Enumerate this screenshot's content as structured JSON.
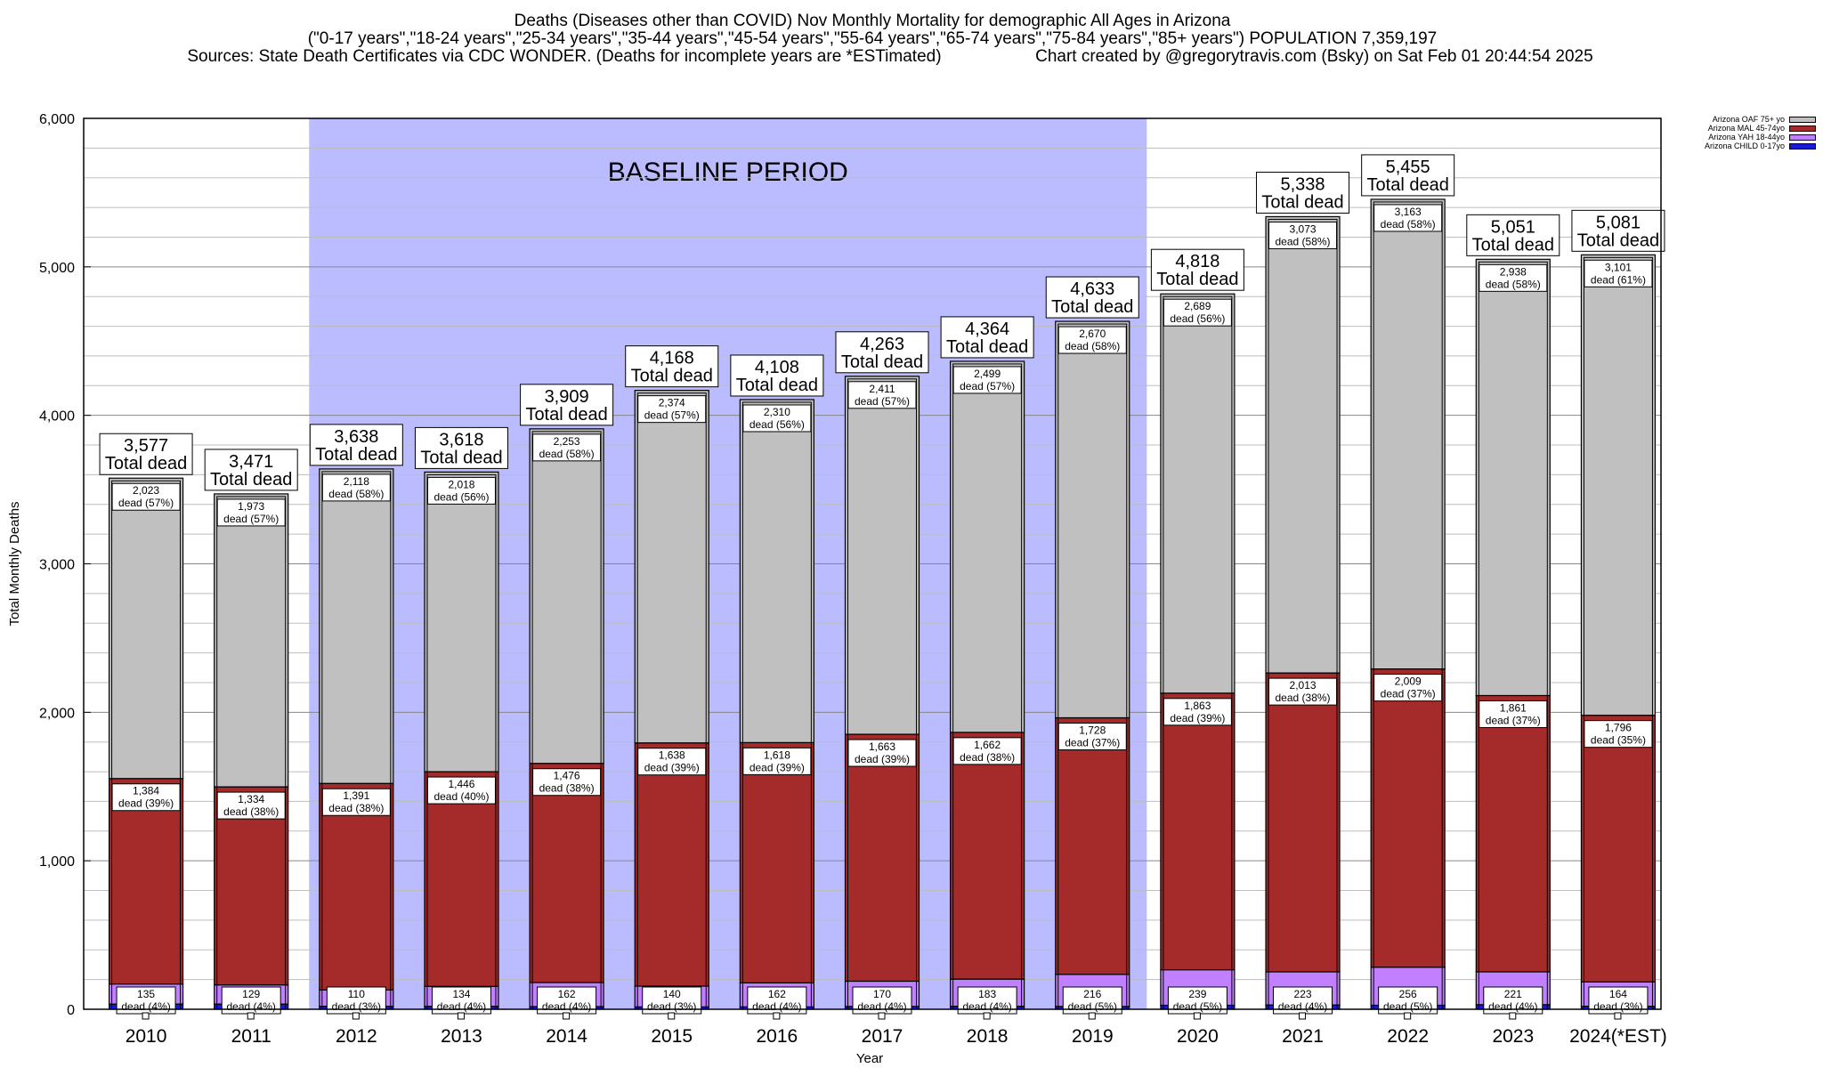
{
  "titles": {
    "line1": "Deaths (Diseases other than COVID) Nov Monthly Mortality for demographic All Ages in Arizona",
    "line2": "(\"0-17 years\",\"18-24 years\",\"25-34 years\",\"35-44 years\",\"45-54 years\",\"55-64 years\",\"65-74 years\",\"75-84 years\",\"85+ years\") POPULATION 7,359,197",
    "line3_left": "Sources: State Death Certificates via CDC WONDER. (Deaths for incomplete years are *ESTimated)",
    "line3_right": "Chart created by @gregorytravis.com (Bsky) on Sat Feb 01 20:44:54 2025"
  },
  "chart_data": {
    "type": "bar",
    "stacked": true,
    "xlabel": "Year",
    "ylabel": "Total Monthly Deaths",
    "ylim": [
      0,
      6000
    ],
    "y_ticks": [
      "0",
      "1,000",
      "2,000",
      "3,000",
      "4,000",
      "5,000",
      "6,000"
    ],
    "grid": true,
    "baseline_label": "BASELINE PERIOD",
    "baseline_range": [
      "2012",
      "2019"
    ],
    "total_label_suffix": "Total dead",
    "segment_label_word": "dead",
    "legend_position": "top-right",
    "categories": [
      "2010",
      "2011",
      "2012",
      "2013",
      "2014",
      "2015",
      "2016",
      "2017",
      "2018",
      "2019",
      "2020",
      "2021",
      "2022",
      "2023",
      "2024(*EST)"
    ],
    "totals": [
      "3,577",
      "3,471",
      "3,638",
      "3,618",
      "3,909",
      "4,168",
      "4,108",
      "4,263",
      "4,364",
      "4,633",
      "4,818",
      "5,338",
      "5,455",
      "5,051",
      "5,081"
    ],
    "series": [
      {
        "name": "Arizona CHILD 0-17yo",
        "color": "#1a1ad6",
        "values": [
          35,
          35,
          20,
          20,
          18,
          16,
          16,
          19,
          20,
          19,
          27,
          29,
          27,
          31,
          20
        ]
      },
      {
        "name": "Arizona YAH 18-44yo",
        "color": "#c080ff",
        "values": [
          135,
          129,
          110,
          134,
          162,
          140,
          162,
          170,
          183,
          216,
          239,
          223,
          256,
          221,
          164
        ],
        "labels": [
          "135",
          "129",
          "110",
          "134",
          "162",
          "140",
          "162",
          "170",
          "183",
          "216",
          "239",
          "223",
          "256",
          "221",
          "164"
        ],
        "pcts": [
          "(4%)",
          "(4%)",
          "(3%)",
          "(4%)",
          "(4%)",
          "(3%)",
          "(4%)",
          "(4%)",
          "(4%)",
          "(5%)",
          "(5%)",
          "(4%)",
          "(5%)",
          "(4%)",
          "(3%)"
        ]
      },
      {
        "name": "Arizona MAL 45-74yo",
        "color": "#a52a2a",
        "values": [
          1384,
          1334,
          1391,
          1446,
          1476,
          1638,
          1618,
          1663,
          1662,
          1728,
          1863,
          2013,
          2009,
          1861,
          1796
        ],
        "labels": [
          "1,384",
          "1,334",
          "1,391",
          "1,446",
          "1,476",
          "1,638",
          "1,618",
          "1,663",
          "1,662",
          "1,728",
          "1,863",
          "2,013",
          "2,009",
          "1,861",
          "1,796"
        ],
        "pcts": [
          "(39%)",
          "(38%)",
          "(38%)",
          "(40%)",
          "(38%)",
          "(39%)",
          "(39%)",
          "(39%)",
          "(38%)",
          "(37%)",
          "(39%)",
          "(38%)",
          "(37%)",
          "(37%)",
          "(35%)"
        ]
      },
      {
        "name": "Arizona OAF 75+ yo",
        "color": "#c0c0c0",
        "values": [
          2023,
          1973,
          2118,
          2018,
          2253,
          2374,
          2310,
          2411,
          2499,
          2670,
          2689,
          3073,
          3163,
          2938,
          3101
        ],
        "labels": [
          "2,023",
          "1,973",
          "2,118",
          "2,018",
          "2,253",
          "2,374",
          "2,310",
          "2,411",
          "2,499",
          "2,670",
          "2,689",
          "3,073",
          "3,163",
          "2,938",
          "3,101"
        ],
        "pcts": [
          "(57%)",
          "(57%)",
          "(58%)",
          "(56%)",
          "(58%)",
          "(57%)",
          "(56%)",
          "(57%)",
          "(57%)",
          "(58%)",
          "(56%)",
          "(58%)",
          "(58%)",
          "(58%)",
          "(61%)"
        ]
      }
    ]
  }
}
